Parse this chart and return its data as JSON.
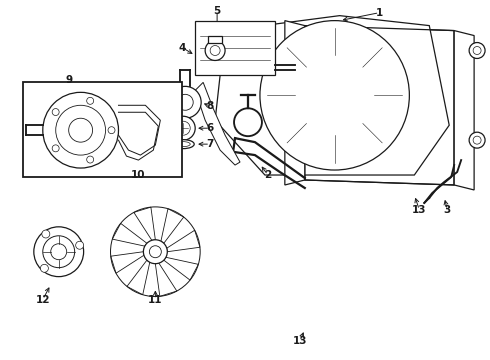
{
  "background_color": "#ffffff",
  "line_color": "#1a1a1a",
  "fig_width": 4.9,
  "fig_height": 3.6,
  "dpi": 100,
  "label_fontsize": 7.5
}
